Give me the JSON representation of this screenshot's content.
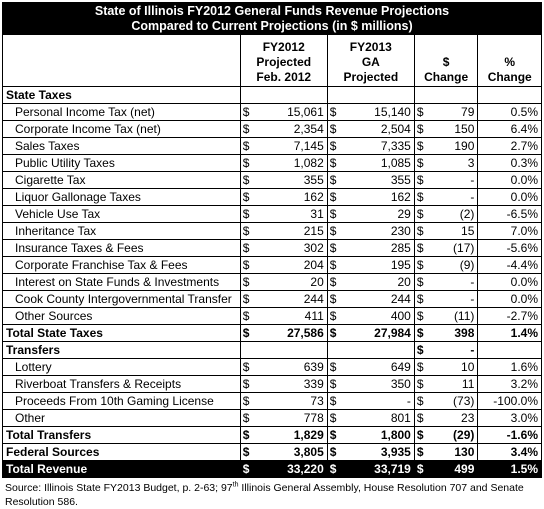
{
  "title": {
    "line1": "State of Illinois FY2012 General Funds Revenue Projections",
    "line2": "Compared to Current Projections (in $ millions)"
  },
  "headers": {
    "col1": [
      "FY2012",
      "Projected",
      "Feb. 2012"
    ],
    "col2": [
      "FY2013",
      "GA",
      "Projected"
    ],
    "col3": [
      "$",
      "Change"
    ],
    "col4": [
      "%",
      "Change"
    ]
  },
  "currency_symbol": "$",
  "sections": {
    "state_taxes": "State Taxes",
    "transfers": "Transfers"
  },
  "state_taxes": [
    {
      "label": "Personal Income Tax (net)",
      "fy2012": "15,061",
      "fy2013": "15,140",
      "change": "79",
      "pct": "0.5%"
    },
    {
      "label": "Corporate Income Tax (net)",
      "fy2012": "2,354",
      "fy2013": "2,504",
      "change": "150",
      "pct": "6.4%"
    },
    {
      "label": "Sales Taxes",
      "fy2012": "7,145",
      "fy2013": "7,335",
      "change": "190",
      "pct": "2.7%"
    },
    {
      "label": "Public Utility Taxes",
      "fy2012": "1,082",
      "fy2013": "1,085",
      "change": "3",
      "pct": "0.3%"
    },
    {
      "label": "Cigarette Tax",
      "fy2012": "355",
      "fy2013": "355",
      "change": "-",
      "pct": "0.0%"
    },
    {
      "label": "Liquor Gallonage Taxes",
      "fy2012": "162",
      "fy2013": "162",
      "change": "-",
      "pct": "0.0%"
    },
    {
      "label": "Vehicle Use Tax",
      "fy2012": "31",
      "fy2013": "29",
      "change": "(2)",
      "pct": "-6.5%"
    },
    {
      "label": "Inheritance Tax",
      "fy2012": "215",
      "fy2013": "230",
      "change": "15",
      "pct": "7.0%"
    },
    {
      "label": "Insurance Taxes & Fees",
      "fy2012": "302",
      "fy2013": "285",
      "change": "(17)",
      "pct": "-5.6%"
    },
    {
      "label": "Corporate Franchise Tax & Fees",
      "fy2012": "204",
      "fy2013": "195",
      "change": "(9)",
      "pct": "-4.4%"
    },
    {
      "label": "Interest on State Funds & Investments",
      "fy2012": "20",
      "fy2013": "20",
      "change": "-",
      "pct": "0.0%"
    },
    {
      "label": "Cook County Intergovernmental Transfer",
      "fy2012": "244",
      "fy2013": "244",
      "change": "-",
      "pct": "0.0%"
    },
    {
      "label": "Other Sources",
      "fy2012": "411",
      "fy2013": "400",
      "change": "(11)",
      "pct": "-2.7%"
    }
  ],
  "total_state_taxes": {
    "label": "Total State Taxes",
    "fy2012": "27,586",
    "fy2013": "27,984",
    "change": "398",
    "pct": "1.4%"
  },
  "transfers_blank_change": "-",
  "transfers": [
    {
      "label": "Lottery",
      "fy2012": "639",
      "fy2013": "649",
      "change": "10",
      "pct": "1.6%"
    },
    {
      "label": "Riverboat Transfers & Receipts",
      "fy2012": "339",
      "fy2013": "350",
      "change": "11",
      "pct": "3.2%"
    },
    {
      "label": "Proceeds From 10th Gaming License",
      "fy2012": "73",
      "fy2013": "-",
      "change": "(73)",
      "pct": "-100.0%"
    },
    {
      "label": "Other",
      "fy2012": "778",
      "fy2013": "801",
      "change": "23",
      "pct": "3.0%"
    }
  ],
  "total_transfers": {
    "label": "Total Transfers",
    "fy2012": "1,829",
    "fy2013": "1,800",
    "change": "(29)",
    "pct": "-1.6%"
  },
  "federal_sources": {
    "label": "Federal Sources",
    "fy2012": "3,805",
    "fy2013": "3,935",
    "change": "130",
    "pct": "3.4%"
  },
  "total_revenue": {
    "label": "Total Revenue",
    "fy2012": "33,220",
    "fy2013": "33,719",
    "change": "499",
    "pct": "1.5%"
  },
  "source": {
    "prefix": "Source: Illinois State FY2013 Budget, p. 2-63; 97",
    "sup": "th",
    "suffix": " Illinois General Assembly, House Resolution 707 and Senate Resolution 586."
  }
}
